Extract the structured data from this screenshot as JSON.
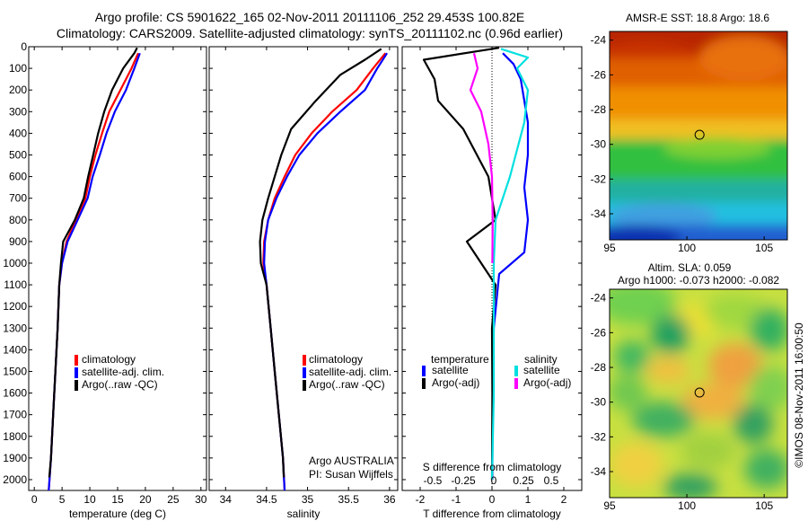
{
  "header": {
    "line1": "Argo profile: CS 5901622_165 02-Nov-2011 20111106_252 29.453S 100.82E",
    "line2": "Climatology: CARS2009. Satellite-adjusted climatology: synTS_20111102.nc (0.96d earlier)"
  },
  "watermark": "©IMOS 08-Nov-2011 16:00:50",
  "chart_data": [
    {
      "id": "temperature",
      "type": "line",
      "xlabel": "temperature (deg C)",
      "xlim": [
        -1,
        31
      ],
      "xticks": [
        0,
        5,
        10,
        15,
        20,
        25,
        30
      ],
      "ylim": [
        2050,
        0
      ],
      "yticks": [
        0,
        100,
        200,
        300,
        400,
        500,
        600,
        700,
        800,
        900,
        1000,
        1100,
        1200,
        1300,
        1400,
        1500,
        1600,
        1700,
        1800,
        1900,
        2000
      ],
      "legend": [
        "climatology",
        "satellite-adj. clim.",
        "Argo(..raw -QC)"
      ],
      "series": [
        {
          "name": "climatology",
          "color": "#ff0000",
          "points": [
            [
              18.7,
              30
            ],
            [
              17.5,
              100
            ],
            [
              15.5,
              200
            ],
            [
              13.5,
              300
            ],
            [
              12.2,
              400
            ],
            [
              11,
              500
            ],
            [
              10,
              600
            ],
            [
              9.2,
              700
            ],
            [
              7.5,
              800
            ],
            [
              5.8,
              900
            ],
            [
              5,
              1000
            ],
            [
              4.5,
              1100
            ],
            [
              4.2,
              1300
            ],
            [
              3.8,
              1500
            ],
            [
              3.4,
              1700
            ],
            [
              3,
              1900
            ],
            [
              2.6,
              2050
            ]
          ]
        },
        {
          "name": "satellite-adj. clim.",
          "color": "#0000ff",
          "points": [
            [
              19,
              30
            ],
            [
              18,
              100
            ],
            [
              16.5,
              200
            ],
            [
              14.5,
              300
            ],
            [
              13,
              400
            ],
            [
              11.8,
              500
            ],
            [
              10.5,
              600
            ],
            [
              9.6,
              700
            ],
            [
              7.8,
              800
            ],
            [
              6,
              900
            ],
            [
              5,
              1000
            ],
            [
              4.5,
              1100
            ],
            [
              4.2,
              1300
            ],
            [
              3.8,
              1500
            ],
            [
              3.4,
              1700
            ],
            [
              3,
              1900
            ],
            [
              2.6,
              2050
            ]
          ]
        },
        {
          "name": "Argo(..raw -QC)",
          "color": "#000000",
          "points": [
            [
              18.5,
              5
            ],
            [
              18,
              30
            ],
            [
              16,
              100
            ],
            [
              14,
              200
            ],
            [
              12.6,
              300
            ],
            [
              11.5,
              400
            ],
            [
              10.6,
              500
            ],
            [
              9.7,
              600
            ],
            [
              8.9,
              700
            ],
            [
              7.3,
              800
            ],
            [
              5.2,
              900
            ],
            [
              4.8,
              1000
            ],
            [
              4.5,
              1100
            ],
            [
              4.2,
              1300
            ],
            [
              3.8,
              1500
            ],
            [
              3.4,
              1700
            ],
            [
              3,
              1900
            ],
            [
              2.7,
              1990
            ]
          ]
        }
      ]
    },
    {
      "id": "salinity",
      "type": "line",
      "xlabel": "salinity",
      "xlim": [
        33.8,
        36.1
      ],
      "xticks": [
        34,
        34.5,
        35,
        35.5,
        36
      ],
      "xticklabels": [
        "34",
        "34.5",
        "35",
        "35.5",
        "36"
      ],
      "ylim": [
        2050,
        0
      ],
      "legend": [
        "climatology",
        "satellite-adj. clim.",
        "Argo(..raw -QC)"
      ],
      "annotation": [
        "Argo AUSTRALIA",
        "PI: Susan Wijffels"
      ],
      "series": [
        {
          "name": "climatology",
          "color": "#ff0000",
          "points": [
            [
              35.95,
              30
            ],
            [
              35.8,
              100
            ],
            [
              35.6,
              200
            ],
            [
              35.3,
              300
            ],
            [
              35.05,
              400
            ],
            [
              34.85,
              500
            ],
            [
              34.72,
              600
            ],
            [
              34.6,
              700
            ],
            [
              34.52,
              800
            ],
            [
              34.47,
              900
            ],
            [
              34.46,
              1000
            ],
            [
              34.5,
              1100
            ],
            [
              34.55,
              1300
            ],
            [
              34.6,
              1500
            ],
            [
              34.65,
              1700
            ],
            [
              34.7,
              1900
            ],
            [
              34.72,
              2050
            ]
          ]
        },
        {
          "name": "satellite-adj. clim.",
          "color": "#0000ff",
          "points": [
            [
              35.97,
              30
            ],
            [
              35.85,
              100
            ],
            [
              35.7,
              200
            ],
            [
              35.4,
              300
            ],
            [
              35.12,
              400
            ],
            [
              34.9,
              500
            ],
            [
              34.75,
              600
            ],
            [
              34.62,
              700
            ],
            [
              34.52,
              800
            ],
            [
              34.48,
              900
            ],
            [
              34.47,
              1000
            ],
            [
              34.5,
              1100
            ],
            [
              34.55,
              1300
            ],
            [
              34.6,
              1500
            ],
            [
              34.65,
              1700
            ],
            [
              34.7,
              1900
            ],
            [
              34.72,
              2050
            ]
          ]
        },
        {
          "name": "Argo(..raw -QC)",
          "color": "#000000",
          "points": [
            [
              35.9,
              10
            ],
            [
              35.7,
              60
            ],
            [
              35.4,
              130
            ],
            [
              35.1,
              250
            ],
            [
              34.8,
              380
            ],
            [
              34.68,
              500
            ],
            [
              34.6,
              600
            ],
            [
              34.52,
              700
            ],
            [
              34.45,
              800
            ],
            [
              34.42,
              900
            ],
            [
              34.43,
              1000
            ],
            [
              34.5,
              1100
            ],
            [
              34.55,
              1300
            ],
            [
              34.6,
              1500
            ],
            [
              34.65,
              1700
            ],
            [
              34.7,
              1900
            ],
            [
              34.71,
              1990
            ]
          ]
        }
      ]
    },
    {
      "id": "difference",
      "type": "line",
      "xlabel": "T difference from climatology",
      "xlim": [
        -2.5,
        2.5
      ],
      "xticks": [
        -2,
        -1,
        0,
        1,
        2
      ],
      "top_label": "S difference from climatology",
      "top_ticks": [
        "-0.5",
        "-0.25",
        "0",
        "0.25",
        "0.5"
      ],
      "ylim": [
        2050,
        0
      ],
      "legend_left_title": "temperature",
      "legend_left": [
        "satellite",
        "Argo(-adj)"
      ],
      "legend_right_title": "salinity",
      "legend_right": [
        "satellite",
        "Argo(-adj)"
      ],
      "series": [
        {
          "name": "T satellite",
          "color": "#0000ff",
          "points": [
            [
              0.3,
              30
            ],
            [
              0.6,
              80
            ],
            [
              0.8,
              150
            ],
            [
              0.9,
              250
            ],
            [
              1.0,
              350
            ],
            [
              1.0,
              500
            ],
            [
              0.9,
              650
            ],
            [
              1.0,
              800
            ],
            [
              0.9,
              950
            ],
            [
              0.2,
              1050
            ],
            [
              0.05,
              1300
            ],
            [
              0.02,
              1600
            ],
            [
              0.01,
              2000
            ]
          ]
        },
        {
          "name": "T Argo(-adj)",
          "color": "#000000",
          "points": [
            [
              0.2,
              5
            ],
            [
              -1.9,
              60
            ],
            [
              -1.6,
              150
            ],
            [
              -1.5,
              250
            ],
            [
              -0.8,
              380
            ],
            [
              -0.1,
              600
            ],
            [
              0.1,
              800
            ],
            [
              -0.7,
              900
            ],
            [
              -0.3,
              1000
            ],
            [
              0.1,
              1100
            ],
            [
              0,
              1300
            ],
            [
              0.01,
              1600
            ],
            [
              0,
              2000
            ]
          ]
        },
        {
          "name": "S satellite",
          "color": "#00e0e0",
          "points": [
            [
              0.25,
              10
            ],
            [
              1.0,
              50
            ],
            [
              0.7,
              100
            ],
            [
              1.0,
              200
            ],
            [
              0.9,
              350
            ],
            [
              0.5,
              600
            ],
            [
              0.1,
              800
            ],
            [
              0.05,
              1000
            ],
            [
              0.05,
              1300
            ],
            [
              0.05,
              1600
            ],
            [
              0,
              2000
            ]
          ]
        },
        {
          "name": "S Argo(-adj)",
          "color": "#ff00ff",
          "points": [
            [
              -0.5,
              30
            ],
            [
              -0.4,
              100
            ],
            [
              -0.6,
              200
            ],
            [
              -0.3,
              300
            ],
            [
              -0.1,
              450
            ],
            [
              0,
              600
            ],
            [
              0.02,
              800
            ],
            [
              0.01,
              1000
            ]
          ]
        }
      ]
    },
    {
      "id": "sst_map",
      "type": "heatmap",
      "title": "AMSR-E SST: 18.8  Argo: 18.6",
      "xticks": [
        95,
        100,
        105
      ],
      "yticks": [
        -24,
        -26,
        -28,
        -30,
        -32,
        -34
      ],
      "xlim": [
        95,
        106.5
      ],
      "ylim": [
        -35.5,
        -23.5
      ],
      "marker": {
        "lon": 100.82,
        "lat": -29.45
      }
    },
    {
      "id": "sla_map",
      "type": "heatmap",
      "title_line1": "Altim. SLA: 0.059",
      "title_line2": "Argo h1000: -0.073 h2000: -0.082",
      "xticks": [
        95,
        100,
        105
      ],
      "yticks": [
        -24,
        -26,
        -28,
        -30,
        -32,
        -34
      ],
      "xlim": [
        95,
        106.5
      ],
      "ylim": [
        -35.5,
        -23.5
      ],
      "marker": {
        "lon": 100.82,
        "lat": -29.45
      }
    }
  ]
}
